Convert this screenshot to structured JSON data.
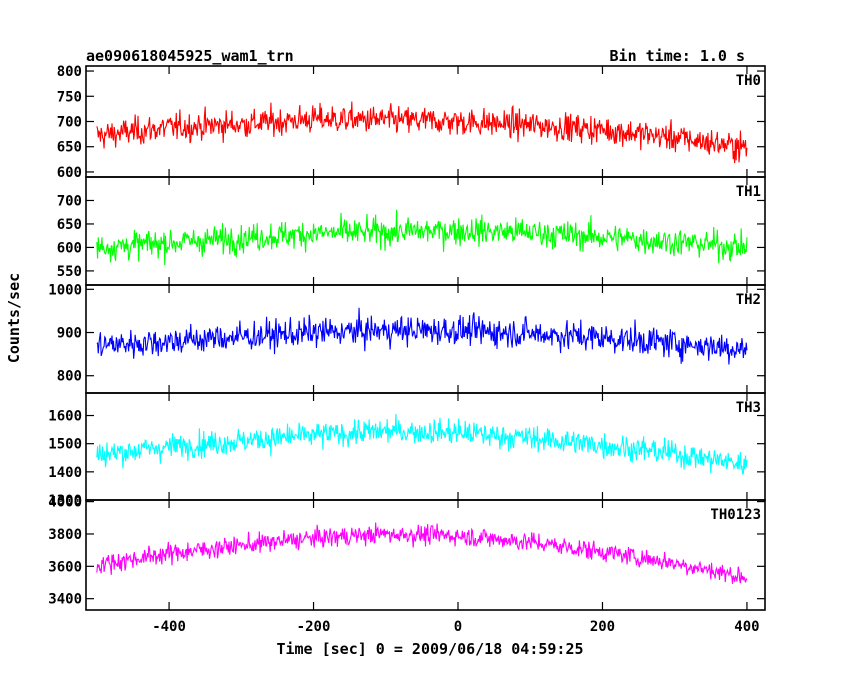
{
  "header": {
    "title": "ae090618045925_wam1_trn",
    "bin_time": "Bin time: 1.0 s"
  },
  "chart_data": {
    "type": "line",
    "title": "ae090618045925_wam1_trn",
    "xlabel": "Time [sec] 0 = 2009/06/18 04:59:25",
    "ylabel": "Counts/sec",
    "xlim": [
      -515,
      425
    ],
    "x_ticks": [
      -400,
      -200,
      0,
      200,
      400
    ],
    "x_range": [
      -500,
      400
    ],
    "bin_seconds": 1.0,
    "grid": false,
    "panels": [
      {
        "name": "TH0",
        "color": "#ff0000",
        "ylim": [
          590,
          810
        ],
        "y_ticks": [
          600,
          650,
          700,
          750,
          800
        ],
        "trend": [
          [
            -500,
            672
          ],
          [
            -400,
            688
          ],
          [
            -300,
            695
          ],
          [
            -200,
            705
          ],
          [
            -100,
            703
          ],
          [
            0,
            700
          ],
          [
            100,
            693
          ],
          [
            200,
            684
          ],
          [
            300,
            668
          ],
          [
            400,
            648
          ]
        ],
        "noise_sd": 28
      },
      {
        "name": "TH1",
        "color": "#00ff00",
        "ylim": [
          520,
          750
        ],
        "y_ticks": [
          550,
          600,
          650,
          700
        ],
        "trend": [
          [
            -500,
            600
          ],
          [
            -400,
            610
          ],
          [
            -300,
            620
          ],
          [
            -200,
            630
          ],
          [
            -100,
            633
          ],
          [
            0,
            636
          ],
          [
            100,
            632
          ],
          [
            200,
            622
          ],
          [
            300,
            612
          ],
          [
            400,
            600
          ]
        ],
        "noise_sd": 30
      },
      {
        "name": "TH2",
        "color": "#0000ff",
        "ylim": [
          760,
          1010
        ],
        "y_ticks": [
          800,
          900,
          1000
        ],
        "trend": [
          [
            -500,
            870
          ],
          [
            -400,
            880
          ],
          [
            -300,
            890
          ],
          [
            -200,
            900
          ],
          [
            -100,
            905
          ],
          [
            0,
            905
          ],
          [
            100,
            898
          ],
          [
            200,
            888
          ],
          [
            300,
            875
          ],
          [
            400,
            862
          ]
        ],
        "noise_sd": 34
      },
      {
        "name": "TH3",
        "color": "#00ffff",
        "ylim": [
          1300,
          1680
        ],
        "y_ticks": [
          1300,
          1400,
          1500,
          1600
        ],
        "trend": [
          [
            -500,
            1460
          ],
          [
            -400,
            1490
          ],
          [
            -300,
            1510
          ],
          [
            -200,
            1530
          ],
          [
            -100,
            1545
          ],
          [
            0,
            1540
          ],
          [
            100,
            1520
          ],
          [
            200,
            1495
          ],
          [
            300,
            1465
          ],
          [
            400,
            1425
          ]
        ],
        "noise_sd": 45
      },
      {
        "name": "TH0123",
        "color": "#ff00ff",
        "ylim": [
          3330,
          4010
        ],
        "y_ticks": [
          3400,
          3600,
          3800,
          4000
        ],
        "trend": [
          [
            -500,
            3610
          ],
          [
            -400,
            3680
          ],
          [
            -300,
            3730
          ],
          [
            -200,
            3775
          ],
          [
            -100,
            3800
          ],
          [
            0,
            3790
          ],
          [
            100,
            3750
          ],
          [
            200,
            3690
          ],
          [
            300,
            3620
          ],
          [
            400,
            3530
          ]
        ],
        "noise_sd": 60
      }
    ]
  }
}
